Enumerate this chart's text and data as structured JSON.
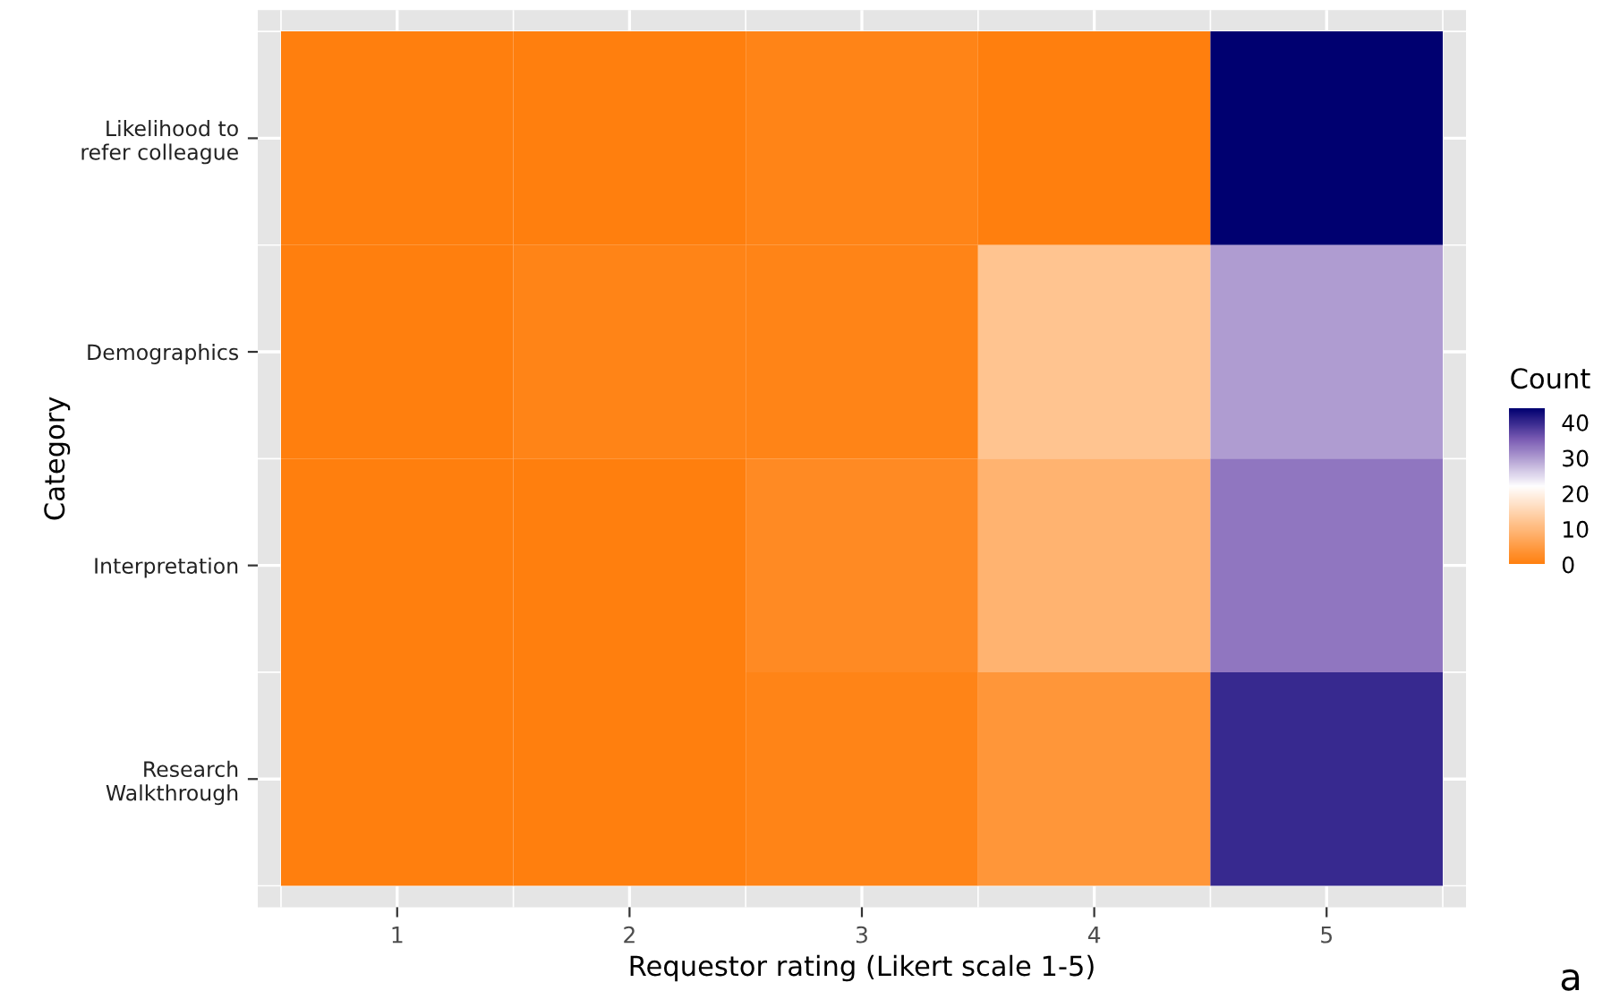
{
  "chart_data": {
    "type": "heatmap",
    "xlabel": "Requestor rating (Likert scale 1-5)",
    "ylabel": "Category",
    "clabel": "Count",
    "categories": [
      "1",
      "2",
      "3",
      "4",
      "5"
    ],
    "y_categories": [
      "Likelihood to\nrefer colleague",
      "Demographics",
      "Interpretation",
      "Research\nWalkthrough"
    ],
    "cells": [
      [
        0,
        0,
        1,
        0,
        44
      ],
      [
        0,
        1,
        1,
        12,
        30
      ],
      [
        0,
        0,
        2,
        9,
        33
      ],
      [
        0,
        0,
        1,
        4,
        40
      ]
    ],
    "clim": [
      0,
      44
    ],
    "cticks": [
      0,
      10,
      20,
      30,
      40
    ],
    "grid": true,
    "annotations": [
      "a"
    ]
  }
}
